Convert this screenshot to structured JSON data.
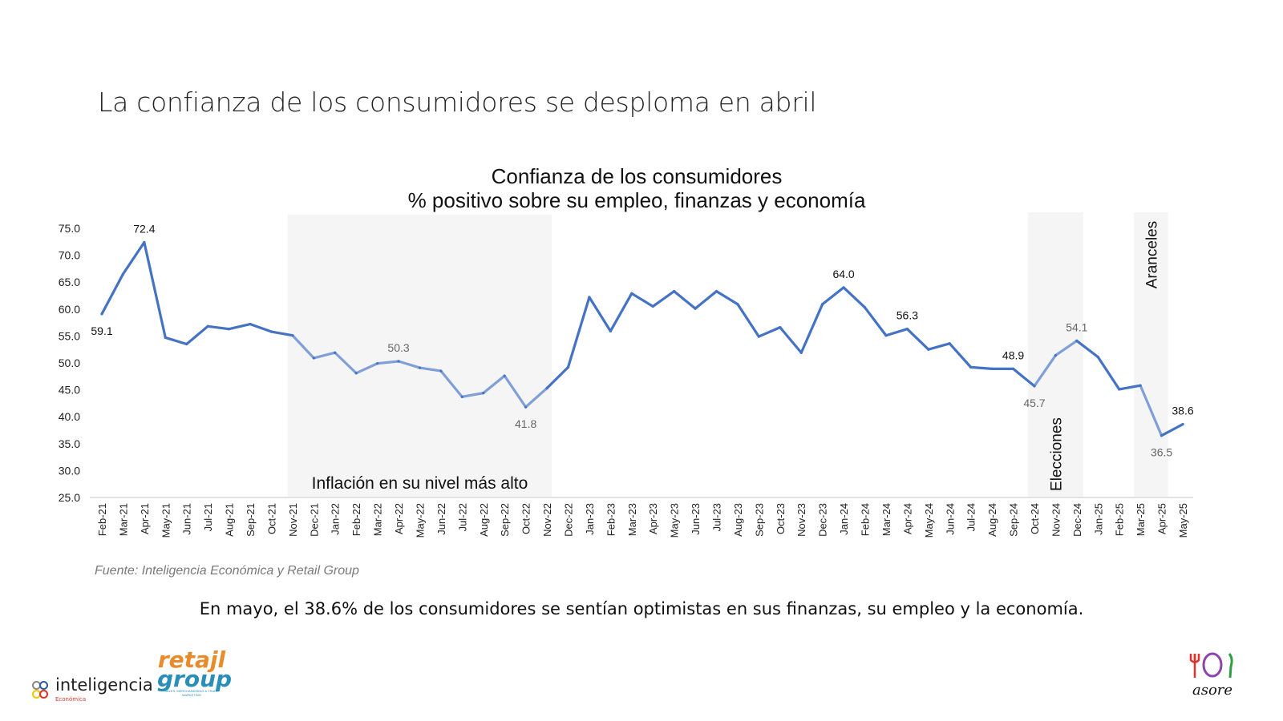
{
  "slide": {
    "title": "La confianza de los consumidores se desploma en abril",
    "source": "Fuente: Inteligencia Económica y Retail Group",
    "footnote": "En mayo, el 38.6% de los consumidores se sentían optimistas en sus finanzas, su empleo y la economía."
  },
  "logos": {
    "inteligencia": {
      "name": "inteligencia",
      "sub": "Económica"
    },
    "retail_group": {
      "line1": "retajl",
      "line2": "group",
      "tagline": "SALES, MERCHANDISING & TRADE MARKETING"
    },
    "asore": {
      "name": "asore"
    }
  },
  "chart_data": {
    "type": "line",
    "title": "Confianza de los consumidores",
    "subtitle": "% positivo sobre su empleo, finanzas y economía",
    "xlabel": "",
    "ylabel": "",
    "ylim": [
      25,
      75
    ],
    "yticks": [
      "25.0",
      "30.0",
      "35.0",
      "40.0",
      "45.0",
      "50.0",
      "55.0",
      "60.0",
      "65.0",
      "70.0",
      "75.0"
    ],
    "grid": false,
    "legend": "none",
    "line_color": "#4472c4",
    "highlight_line_color": "#7f9fd6",
    "shade_color": "#f5f5f5",
    "categories": [
      "Feb-21",
      "Mar-21",
      "Apr-21",
      "May-21",
      "Jun-21",
      "Jul-21",
      "Aug-21",
      "Sep-21",
      "Oct-21",
      "Nov-21",
      "Dec-21",
      "Jan-22",
      "Feb-22",
      "Mar-22",
      "Apr-22",
      "May-22",
      "Jun-22",
      "Jul-22",
      "Aug-22",
      "Sep-22",
      "Oct-22",
      "Nov-22",
      "Dec-22",
      "Jan-23",
      "Feb-23",
      "Mar-23",
      "Apr-23",
      "May-23",
      "Jun-23",
      "Jul-23",
      "Aug-23",
      "Sep-23",
      "Oct-23",
      "Nov-23",
      "Dec-23",
      "Jan-24",
      "Feb-24",
      "Mar-24",
      "Apr-24",
      "May-24",
      "Jun-24",
      "Jul-24",
      "Aug-24",
      "Sep-24",
      "Oct-24",
      "Nov-24",
      "Dec-24",
      "Jan-25",
      "Feb-25",
      "Mar-25",
      "Apr-25",
      "May-25"
    ],
    "series": [
      {
        "name": "Confianza de los consumidores",
        "values": [
          59.1,
          66.5,
          72.4,
          54.7,
          53.5,
          56.8,
          56.3,
          57.2,
          55.8,
          55.1,
          50.9,
          51.9,
          48.1,
          49.9,
          50.3,
          49.1,
          48.5,
          43.7,
          44.4,
          47.6,
          41.8,
          45.3,
          49.2,
          62.2,
          55.9,
          62.9,
          60.5,
          63.3,
          60.1,
          63.3,
          60.9,
          54.9,
          56.6,
          51.9,
          60.9,
          64.0,
          60.3,
          55.1,
          56.3,
          52.5,
          53.6,
          49.2,
          48.9,
          48.9,
          45.7,
          51.4,
          54.1,
          51.1,
          45.1,
          45.8,
          36.5,
          38.6
        ]
      }
    ],
    "data_labels": [
      {
        "category": "Feb-21",
        "value": "59.1",
        "position": "below",
        "muted": false
      },
      {
        "category": "Apr-21",
        "value": "72.4",
        "position": "above",
        "muted": false
      },
      {
        "category": "Apr-22",
        "value": "50.3",
        "position": "above",
        "muted": true
      },
      {
        "category": "Oct-22",
        "value": "41.8",
        "position": "below",
        "muted": true
      },
      {
        "category": "Jan-24",
        "value": "64.0",
        "position": "above",
        "muted": false
      },
      {
        "category": "Apr-24",
        "value": "56.3",
        "position": "above",
        "muted": false
      },
      {
        "category": "Sep-24",
        "value": "48.9",
        "position": "above",
        "muted": false
      },
      {
        "category": "Oct-24",
        "value": "45.7",
        "position": "below",
        "muted": true
      },
      {
        "category": "Dec-24",
        "value": "54.1",
        "position": "above",
        "muted": true
      },
      {
        "category": "Apr-25",
        "value": "36.5",
        "position": "below",
        "muted": true
      },
      {
        "category": "May-25",
        "value": "38.6",
        "position": "above",
        "muted": false
      }
    ],
    "shaded_periods": [
      {
        "from": "Nov-21",
        "to": "Nov-22",
        "label": "Inflación en su nivel más alto",
        "orientation": "horizontal"
      },
      {
        "from": "Oct-24",
        "to": "Dec-24",
        "label": "Elecciones",
        "orientation": "vertical"
      },
      {
        "from": "Mar-25",
        "to": "Apr-25",
        "label": "Aranceles",
        "orientation": "vertical"
      }
    ]
  }
}
